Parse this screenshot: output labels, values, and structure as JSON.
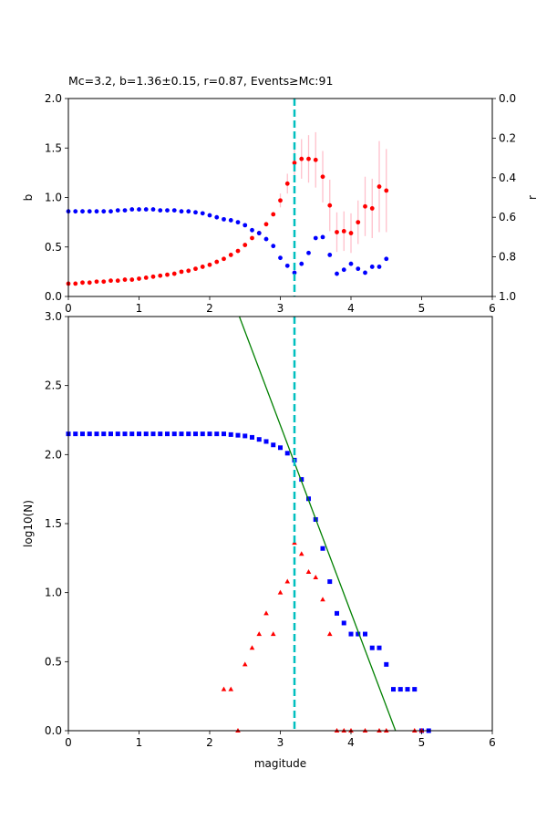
{
  "chart_data": [
    {
      "type": "scatter",
      "title": "Mc=3.2, b=1.36±0.15, r=0.87, Events≥Mc:91",
      "xlabel": "",
      "ylabel": "b",
      "ylabel_right": "r",
      "xlim": [
        0,
        6
      ],
      "ylim": [
        0,
        2
      ],
      "ylim_right": [
        1.0,
        0.0
      ],
      "grid": false,
      "x_ticks": [
        "0",
        "1",
        "2",
        "3",
        "4",
        "5",
        "6"
      ],
      "y_ticks": [
        "0.0",
        "0.5",
        "1.0",
        "1.5",
        "2.0"
      ],
      "y_ticks_right": [
        "0.0",
        "0.2",
        "0.4",
        "0.6",
        "0.8",
        "1.0"
      ],
      "colors": {
        "b": "#ff0000",
        "b_err": "#ffc0cb",
        "r": "#0000ff",
        "mc_line": "#00bfbf"
      },
      "mc_line_x": 3.2,
      "series": [
        {
          "axis": "left",
          "x": [
            0.0,
            0.1,
            0.2,
            0.3,
            0.4,
            0.5,
            0.6,
            0.7,
            0.8,
            0.9,
            1.0,
            1.1,
            1.2,
            1.3,
            1.4,
            1.5,
            1.6,
            1.7,
            1.8,
            1.9,
            2.0,
            2.1,
            2.2,
            2.3,
            2.4,
            2.5,
            2.6,
            2.7,
            2.8,
            2.9,
            3.0,
            3.1,
            3.2,
            3.3,
            3.4,
            3.5,
            3.6,
            3.7,
            3.8,
            3.9,
            4.0,
            4.1,
            4.2,
            4.3,
            4.4,
            4.5
          ],
          "y": [
            0.13,
            0.13,
            0.14,
            0.14,
            0.15,
            0.15,
            0.16,
            0.16,
            0.17,
            0.17,
            0.18,
            0.19,
            0.2,
            0.21,
            0.22,
            0.23,
            0.25,
            0.26,
            0.28,
            0.3,
            0.32,
            0.35,
            0.38,
            0.42,
            0.46,
            0.52,
            0.59,
            0.64,
            0.73,
            0.83,
            0.97,
            1.14,
            1.35,
            1.39,
            1.39,
            1.38,
            1.21,
            0.92,
            0.65,
            0.66,
            0.64,
            0.75,
            0.91,
            0.89,
            1.11,
            1.07
          ],
          "err": [
            0,
            0,
            0,
            0,
            0,
            0,
            0,
            0,
            0,
            0,
            0,
            0,
            0,
            0,
            0,
            0,
            0,
            0,
            0,
            0,
            0,
            0,
            0,
            0,
            0,
            0,
            0,
            0,
            0,
            0,
            0.07,
            0.1,
            0.15,
            0.2,
            0.24,
            0.28,
            0.26,
            0.26,
            0.2,
            0.2,
            0.2,
            0.22,
            0.3,
            0.3,
            0.46,
            0.42
          ]
        },
        {
          "axis": "right",
          "x": [
            0.0,
            0.1,
            0.2,
            0.3,
            0.4,
            0.5,
            0.6,
            0.7,
            0.8,
            0.9,
            1.0,
            1.1,
            1.2,
            1.3,
            1.4,
            1.5,
            1.6,
            1.7,
            1.8,
            1.9,
            2.0,
            2.1,
            2.2,
            2.3,
            2.4,
            2.5,
            2.6,
            2.7,
            2.8,
            2.9,
            3.0,
            3.1,
            3.2,
            3.3,
            3.4,
            3.5,
            3.6,
            3.7,
            3.8,
            3.9,
            4.0,
            4.1,
            4.2,
            4.3,
            4.4,
            4.5
          ],
          "y": [
            0.57,
            0.57,
            0.57,
            0.57,
            0.57,
            0.57,
            0.57,
            0.565,
            0.565,
            0.56,
            0.56,
            0.56,
            0.56,
            0.565,
            0.565,
            0.565,
            0.57,
            0.57,
            0.575,
            0.58,
            0.59,
            0.6,
            0.61,
            0.615,
            0.625,
            0.64,
            0.665,
            0.68,
            0.71,
            0.745,
            0.805,
            0.845,
            0.88,
            0.835,
            0.78,
            0.705,
            0.7,
            0.79,
            0.885,
            0.865,
            0.835,
            0.86,
            0.88,
            0.85,
            0.85,
            0.81
          ]
        }
      ]
    },
    {
      "type": "scatter",
      "title": "",
      "xlabel": "magitude",
      "ylabel": "log10(N)",
      "xlim": [
        0,
        6
      ],
      "ylim": [
        0,
        3
      ],
      "grid": false,
      "x_ticks": [
        "0",
        "1",
        "2",
        "3",
        "4",
        "5",
        "6"
      ],
      "y_ticks": [
        "0.0",
        "0.5",
        "1.0",
        "1.5",
        "2.0",
        "2.5",
        "3.0"
      ],
      "colors": {
        "cumulative": "#0000ff",
        "noncumulative": "#ff0000",
        "fit": "#008000",
        "mc_line": "#00bfbf"
      },
      "mc_line_x": 3.2,
      "fit_line": {
        "x": [
          2.42,
          4.63
        ],
        "y": [
          3.0,
          0.0
        ]
      },
      "series": [
        {
          "marker": "square",
          "x": [
            0.0,
            0.1,
            0.2,
            0.3,
            0.4,
            0.5,
            0.6,
            0.7,
            0.8,
            0.9,
            1.0,
            1.1,
            1.2,
            1.3,
            1.4,
            1.5,
            1.6,
            1.7,
            1.8,
            1.9,
            2.0,
            2.1,
            2.2,
            2.3,
            2.4,
            2.5,
            2.6,
            2.7,
            2.8,
            2.9,
            3.0,
            3.1,
            3.2,
            3.3,
            3.4,
            3.5,
            3.6,
            3.7,
            3.8,
            3.9,
            4.0,
            4.1,
            4.2,
            4.3,
            4.4,
            4.5,
            4.6,
            4.7,
            4.8,
            4.9,
            5.0,
            5.1
          ],
          "y": [
            2.15,
            2.15,
            2.15,
            2.15,
            2.15,
            2.15,
            2.15,
            2.15,
            2.15,
            2.15,
            2.15,
            2.15,
            2.15,
            2.15,
            2.15,
            2.15,
            2.15,
            2.15,
            2.15,
            2.15,
            2.15,
            2.15,
            2.15,
            2.145,
            2.14,
            2.135,
            2.125,
            2.11,
            2.095,
            2.07,
            2.05,
            2.01,
            1.96,
            1.82,
            1.68,
            1.53,
            1.32,
            1.08,
            0.85,
            0.78,
            0.7,
            0.7,
            0.7,
            0.6,
            0.6,
            0.48,
            0.3,
            0.3,
            0.3,
            0.3,
            0.0,
            0.0
          ]
        },
        {
          "marker": "triangle",
          "x": [
            2.2,
            2.3,
            2.4,
            2.5,
            2.6,
            2.7,
            2.8,
            2.9,
            3.0,
            3.1,
            3.2,
            3.3,
            3.4,
            3.5,
            3.6,
            3.7,
            3.8,
            3.9,
            4.0,
            4.2,
            4.4,
            4.5,
            4.9,
            5.0
          ],
          "y": [
            0.3,
            0.3,
            0.0,
            0.48,
            0.6,
            0.7,
            0.85,
            0.7,
            1.0,
            1.08,
            1.36,
            1.28,
            1.15,
            1.11,
            0.95,
            0.7,
            0.0,
            0.0,
            0.0,
            0.0,
            0.0,
            0.0,
            0.0,
            0.0
          ]
        }
      ]
    }
  ]
}
